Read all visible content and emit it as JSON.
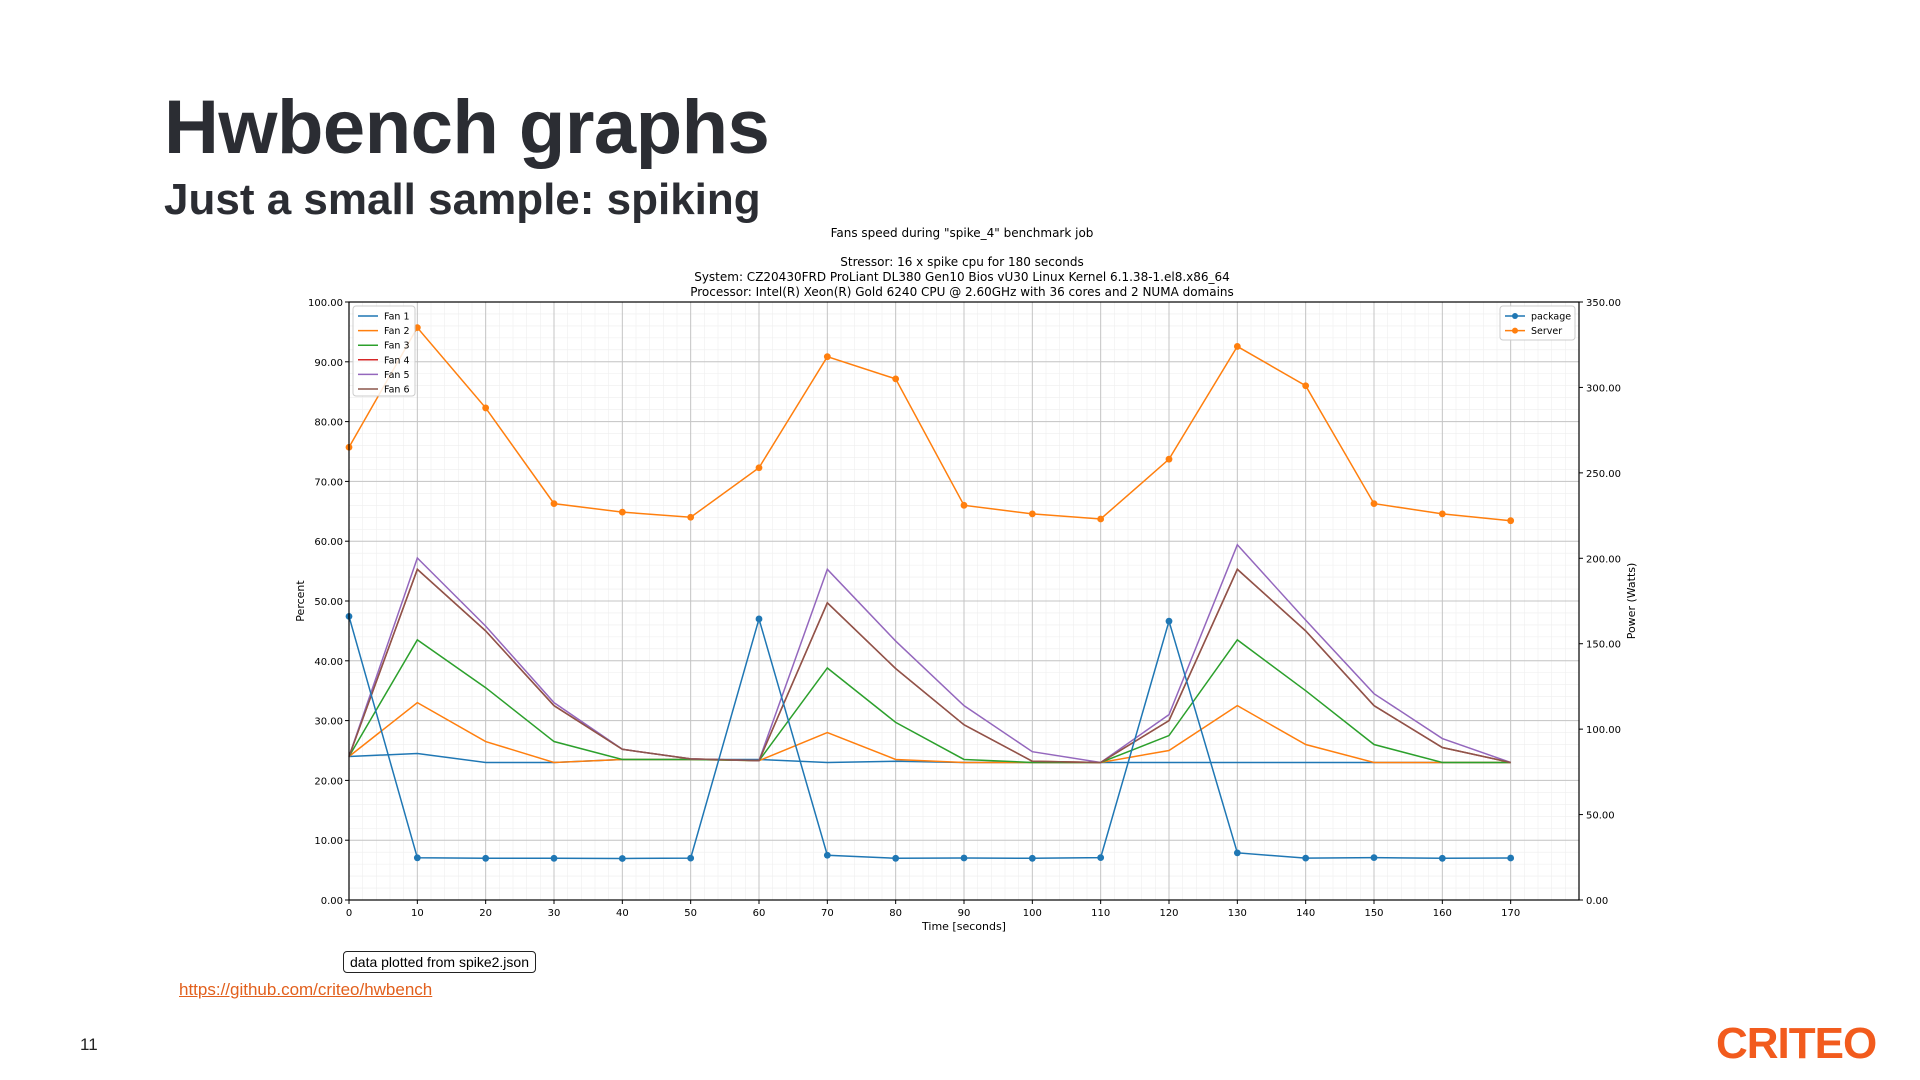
{
  "slide": {
    "title": "Hwbench graphs",
    "subtitle": "Just a small sample: spiking",
    "source_note": "data plotted from spike2.json",
    "link": "https://github.com/criteo/hwbench",
    "page_number": "11",
    "logo": "CRITEO"
  },
  "colors": {
    "fan1": "#1f77b4",
    "fan2": "#ff7f0e",
    "fan3": "#2ca02c",
    "fan4": "#d62728",
    "fan5": "#9467bd",
    "fan6": "#8c564b",
    "package": "#1f77b4",
    "server": "#ff7f0e",
    "accent": "#f25b1d"
  },
  "chart_data": {
    "type": "line",
    "title": "Fans speed during \"spike_4\" benchmark job",
    "subtitle_lines": [
      "Stressor: 16 x spike cpu  for 180 seconds",
      "System: CZ20430FRD ProLiant DL380 Gen10 Bios vU30 Linux Kernel 6.1.38-1.el8.x86_64",
      "Processor: Intel(R) Xeon(R) Gold 6240 CPU @ 2.60GHz with 36 cores and 2 NUMA domains"
    ],
    "xlabel": "Time [seconds]",
    "ylabel": "Percent",
    "y2label": "Power (Watts)",
    "xlim": [
      0,
      180
    ],
    "ylim": [
      0,
      100
    ],
    "y2lim": [
      0,
      350
    ],
    "grid": true,
    "x": [
      0,
      10,
      20,
      30,
      40,
      50,
      60,
      70,
      80,
      90,
      100,
      110,
      120,
      130,
      140,
      150,
      160,
      170
    ],
    "x_ticks": [
      "0",
      "10",
      "20",
      "30",
      "40",
      "50",
      "60",
      "70",
      "80",
      "90",
      "100",
      "110",
      "120",
      "130",
      "140",
      "150",
      "160",
      "170"
    ],
    "y_ticks": [
      "0.00",
      "10.00",
      "20.00",
      "30.00",
      "40.00",
      "50.00",
      "60.00",
      "70.00",
      "80.00",
      "90.00",
      "100.00"
    ],
    "y2_ticks": [
      "0.00",
      "50.00",
      "100.00",
      "150.00",
      "200.00",
      "250.00",
      "300.00",
      "350.00"
    ],
    "legend_left": {
      "placement": "upper-left",
      "entries": [
        "Fan 1",
        "Fan 2",
        "Fan 3",
        "Fan 4",
        "Fan 5",
        "Fan 6"
      ]
    },
    "legend_right": {
      "placement": "upper-right",
      "entries": [
        "package",
        "Server"
      ]
    },
    "series": [
      {
        "name": "Fan 1",
        "axis": "left",
        "color_key": "fan1",
        "marker": false,
        "values": [
          24,
          24.5,
          23,
          23,
          23.5,
          23.5,
          23.5,
          23,
          23.2,
          23,
          23,
          23,
          23,
          23,
          23,
          23,
          23,
          23
        ]
      },
      {
        "name": "Fan 2",
        "axis": "left",
        "color_key": "fan2",
        "marker": false,
        "values": [
          24,
          33,
          26.5,
          23,
          23.5,
          23.5,
          23.3,
          28,
          23.5,
          23,
          23,
          23,
          25,
          32.5,
          26,
          23,
          23,
          23
        ]
      },
      {
        "name": "Fan 3",
        "axis": "left",
        "color_key": "fan3",
        "marker": false,
        "values": [
          24,
          43.5,
          35.5,
          26.5,
          23.5,
          23.5,
          23.3,
          38.8,
          29.7,
          23.5,
          23,
          23,
          27.5,
          43.5,
          35,
          26,
          23,
          23
        ]
      },
      {
        "name": "Fan 4",
        "axis": "left",
        "color_key": "fan4",
        "marker": false,
        "values": [
          24,
          55.3,
          45,
          32.5,
          25.2,
          23.6,
          23.3,
          49.7,
          38.7,
          29.3,
          23.2,
          23,
          30,
          55.3,
          45,
          32.5,
          25.5,
          23
        ]
      },
      {
        "name": "Fan 5",
        "axis": "left",
        "color_key": "fan5",
        "marker": false,
        "values": [
          24,
          57.2,
          45.8,
          33,
          25.2,
          23.6,
          23.3,
          55.3,
          43.3,
          32.5,
          24.8,
          23,
          31,
          59.4,
          46.8,
          34.5,
          27,
          23
        ]
      },
      {
        "name": "Fan 6",
        "axis": "left",
        "color_key": "fan6",
        "marker": false,
        "values": [
          24,
          55.3,
          45,
          32.5,
          25.2,
          23.6,
          23.3,
          49.7,
          38.7,
          29.3,
          23.2,
          23,
          30,
          55.3,
          45,
          32.5,
          25.5,
          23
        ]
      },
      {
        "name": "package",
        "axis": "right",
        "color_key": "package",
        "marker": true,
        "values": [
          166,
          24.7,
          24.4,
          24.4,
          24.3,
          24.5,
          164.5,
          26.2,
          24.4,
          24.6,
          24.4,
          24.8,
          163.2,
          27.6,
          24.5,
          24.8,
          24.4,
          24.6
        ]
      },
      {
        "name": "Server",
        "axis": "right",
        "color_key": "server",
        "marker": true,
        "values": [
          265,
          335,
          288,
          232,
          227,
          224,
          253,
          318,
          305,
          231,
          226,
          223,
          258,
          324,
          301,
          232,
          226,
          222
        ]
      }
    ]
  }
}
